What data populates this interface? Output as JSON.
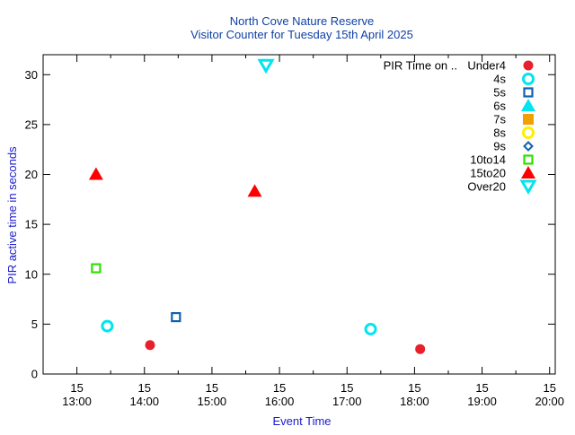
{
  "chart_data": {
    "type": "scatter",
    "title": "North Cove Nature Reserve",
    "subtitle": "Visitor Counter for Tuesday 15th April 2025",
    "xlabel": "Event Time",
    "ylabel": "PIR active time in seconds",
    "xlim": [
      "12:30",
      "20:05"
    ],
    "ylim": [
      0,
      32
    ],
    "y_ticks": [
      0,
      5,
      10,
      15,
      20,
      25,
      30
    ],
    "x_ticks": [
      {
        "value": "13:00",
        "day": "15",
        "time": "13:00"
      },
      {
        "value": "14:00",
        "day": "15",
        "time": "14:00"
      },
      {
        "value": "15:00",
        "day": "15",
        "time": "15:00"
      },
      {
        "value": "16:00",
        "day": "15",
        "time": "16:00"
      },
      {
        "value": "17:00",
        "day": "15",
        "time": "17:00"
      },
      {
        "value": "18:00",
        "day": "15",
        "time": "18:00"
      },
      {
        "value": "19:00",
        "day": "15",
        "time": "19:00"
      },
      {
        "value": "20:00",
        "day": "15",
        "time": "20:00"
      }
    ],
    "x_minor_ticks": [
      "12:30",
      "13:30",
      "14:30",
      "15:30",
      "16:30",
      "17:30",
      "18:30",
      "19:30"
    ],
    "legend_title": "PIR Time on ..",
    "legend_position": "top-right",
    "grid": false,
    "series": [
      {
        "name": "Under4",
        "marker": "circle-filled",
        "color": "#e8202c",
        "points": [
          {
            "x": "14:05",
            "y": 2.9
          },
          {
            "x": "18:05",
            "y": 2.5
          }
        ]
      },
      {
        "name": "4s",
        "marker": "circle-open",
        "color": "#00e5f0",
        "points": [
          {
            "x": "13:27",
            "y": 4.8
          },
          {
            "x": "17:21",
            "y": 4.5
          }
        ]
      },
      {
        "name": "5s",
        "marker": "square-open",
        "color": "#1060b0",
        "points": [
          {
            "x": "14:28",
            "y": 5.7
          }
        ]
      },
      {
        "name": "6s",
        "marker": "triangle-up-filled",
        "color": "#00e5f0",
        "points": []
      },
      {
        "name": "7s",
        "marker": "square-filled",
        "color": "#f0a000",
        "points": []
      },
      {
        "name": "8s",
        "marker": "circle-open",
        "color": "#ffee00",
        "points": []
      },
      {
        "name": "9s",
        "marker": "diamond-open",
        "color": "#1060b0",
        "points": []
      },
      {
        "name": "10to14",
        "marker": "square-open",
        "color": "#30e000",
        "points": [
          {
            "x": "13:17",
            "y": 10.6
          }
        ]
      },
      {
        "name": "15to20",
        "marker": "triangle-up-filled",
        "color": "#ff0000",
        "points": [
          {
            "x": "13:17",
            "y": 20.0
          },
          {
            "x": "15:38",
            "y": 18.3
          }
        ]
      },
      {
        "name": "Over20",
        "marker": "triangle-down-open",
        "color": "#00e5f0",
        "points": [
          {
            "x": "15:48",
            "y": 30.9
          }
        ]
      }
    ]
  }
}
